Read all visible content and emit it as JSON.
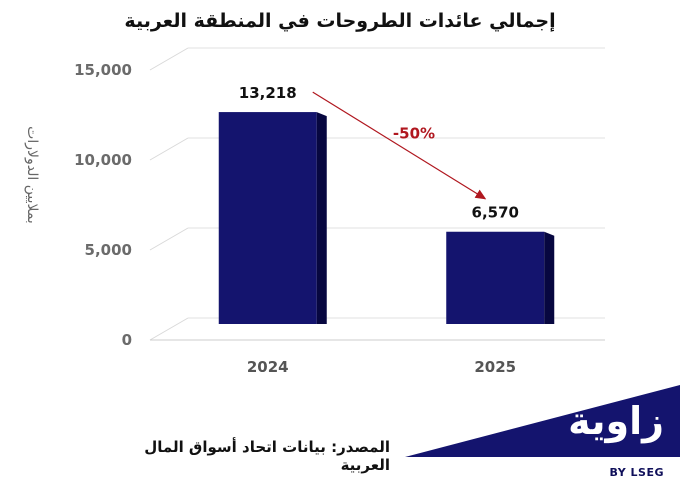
{
  "chart_data": {
    "type": "bar",
    "title": "إجمالي عائدات الطروحات في المنطقة العربية",
    "ylabel": "بملايين الدولارات",
    "categories": [
      "2024",
      "2025"
    ],
    "values": [
      13218,
      6570
    ],
    "value_labels": [
      "13,218",
      "6,570"
    ],
    "ylim": [
      0,
      15000
    ],
    "yticks": [
      0,
      5000,
      10000,
      15000
    ],
    "ytick_labels": [
      "0",
      "5,000",
      "10,000",
      "15,000"
    ],
    "annotation": "-50%",
    "grid": true,
    "bar_color": "#14146e",
    "bar_side_color": "#070740",
    "annotation_color": "#b0171f"
  },
  "footer": {
    "source": "المصدر: بيانات اتحاد أسواق المال العربية"
  },
  "brand": {
    "name": "زاوية",
    "by": "BY LSEG",
    "color": "#14146e"
  }
}
